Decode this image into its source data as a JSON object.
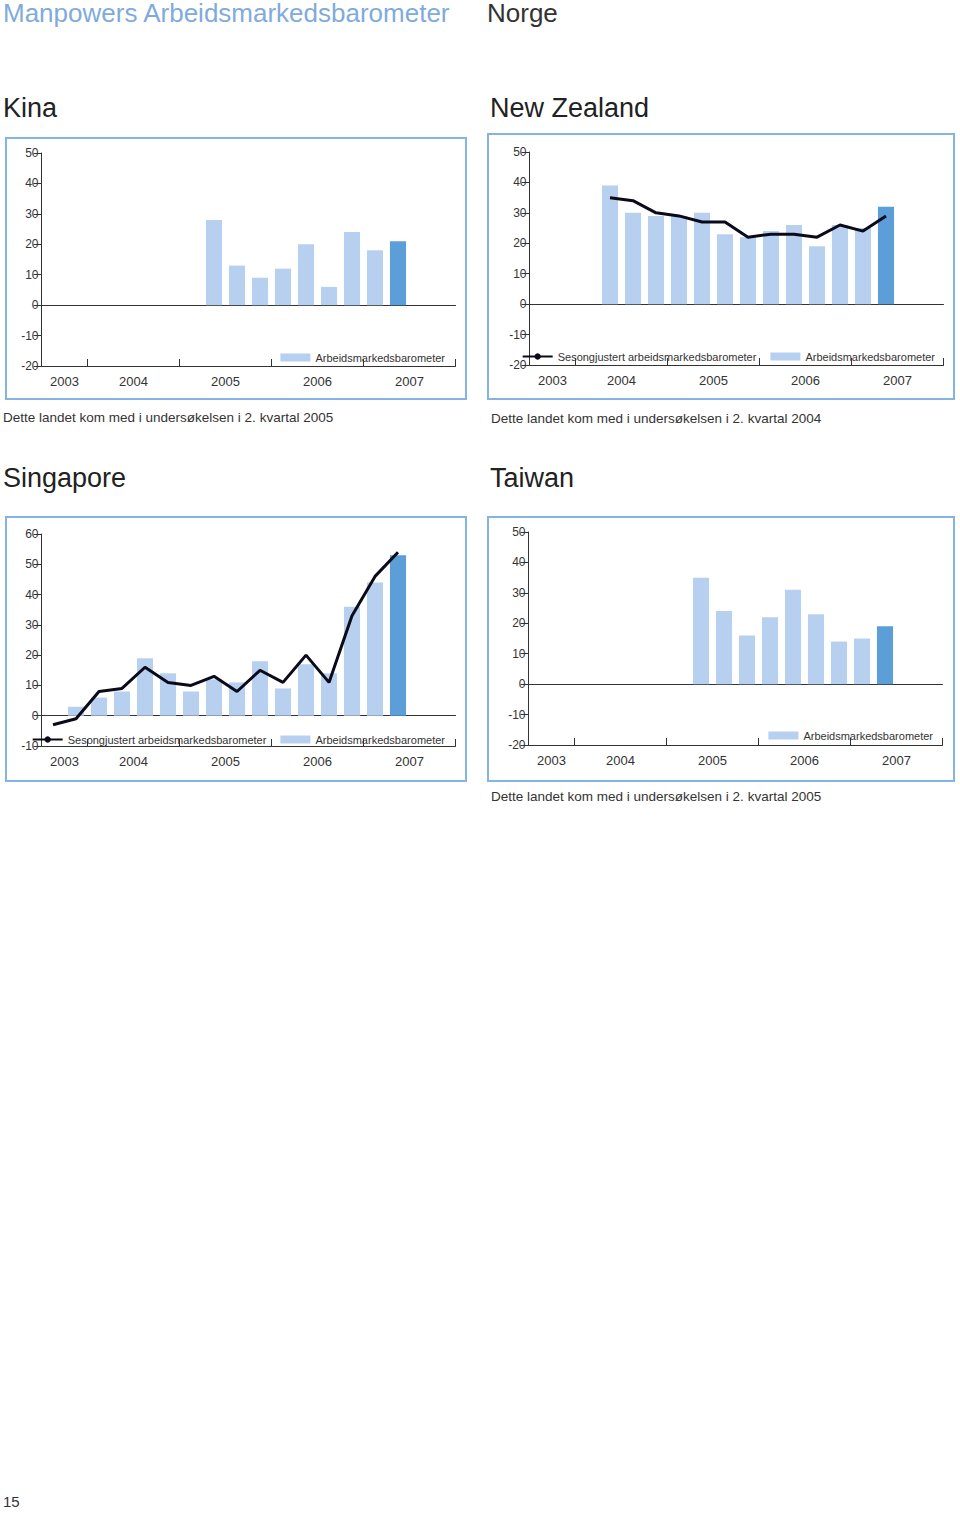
{
  "page": {
    "title": "Manpowers Arbeidsmarkedsbarometer",
    "subtitle": "Norge",
    "page_number": "15"
  },
  "chart_data": [
    {
      "type": "bar",
      "title": "Kina",
      "annotation": "Dette landet kom med i undersøkelsen i 2. kvartal 2005",
      "categories": [
        "2003",
        null,
        null,
        "2004",
        null,
        null,
        null,
        "2005",
        null,
        null,
        null,
        "2006",
        null,
        null,
        null,
        "2007",
        null,
        null
      ],
      "series": [
        {
          "name": "Arbeidsmarkedsbarometer",
          "type": "bar",
          "color": "#b8d0ef",
          "colors": [
            "#b8d0ef",
            "#b8d0ef",
            "#b8d0ef",
            "#b8d0ef",
            "#b8d0ef",
            "#b8d0ef",
            "#b8d0ef",
            "#b8d0ef",
            "#b8d0ef",
            "#b8d0ef",
            "#b8d0ef",
            "#b8d0ef",
            "#b8d0ef",
            "#b8d0ef",
            "#b8d0ef",
            "#5b9ed8",
            "#b8d0ef",
            "#b8d0ef"
          ],
          "values": [
            null,
            null,
            null,
            null,
            null,
            null,
            null,
            28,
            13,
            9,
            12,
            20,
            6,
            24,
            18,
            21,
            null,
            null
          ]
        }
      ],
      "ylim": [
        -20,
        50
      ],
      "yticks": [
        -20,
        -10,
        0,
        10,
        20,
        30,
        40,
        50
      ],
      "grid": false,
      "legend": "bottom right"
    },
    {
      "type": "bar",
      "title": "New Zealand",
      "annotation": "Dette landet kom med i undersøkelsen i 2. kvartal 2004",
      "categories": [
        "2003",
        null,
        null,
        "2004",
        null,
        null,
        null,
        "2005",
        null,
        null,
        null,
        "2006",
        null,
        null,
        null,
        "2007",
        null,
        null
      ],
      "series": [
        {
          "name": "Sesongjustert arbeidsmarkedsbarometer",
          "type": "line",
          "color": "#0a0a1a",
          "values": [
            null,
            null,
            null,
            35,
            34,
            30,
            29,
            27,
            27,
            22,
            23,
            23,
            22,
            26,
            24,
            29,
            null,
            null
          ]
        },
        {
          "name": "Arbeidsmarkedsbarometer",
          "type": "bar",
          "color": "#b8d0ef",
          "colors": [
            "#b8d0ef",
            "#b8d0ef",
            "#b8d0ef",
            "#b8d0ef",
            "#b8d0ef",
            "#b8d0ef",
            "#b8d0ef",
            "#b8d0ef",
            "#b8d0ef",
            "#b8d0ef",
            "#b8d0ef",
            "#b8d0ef",
            "#b8d0ef",
            "#b8d0ef",
            "#b8d0ef",
            "#5b9ed8",
            "#b8d0ef",
            "#b8d0ef"
          ],
          "values": [
            null,
            null,
            null,
            39,
            30,
            29,
            29,
            30,
            23,
            22,
            24,
            26,
            19,
            26,
            25,
            32,
            null,
            null
          ]
        }
      ],
      "ylim": [
        -20,
        50
      ],
      "yticks": [
        -20,
        -10,
        0,
        10,
        20,
        30,
        40,
        50
      ],
      "grid": false,
      "legend": "bottom right"
    },
    {
      "type": "bar",
      "title": "Singapore",
      "categories": [
        "2003",
        null,
        null,
        "2004",
        null,
        null,
        null,
        "2005",
        null,
        null,
        null,
        "2006",
        null,
        null,
        null,
        "2007",
        null,
        null
      ],
      "series": [
        {
          "name": "Sesongjustert arbeidsmarkedsbarometer",
          "type": "line",
          "color": "#0a0a1a",
          "values": [
            -3,
            -1,
            8,
            9,
            16,
            11,
            10,
            13,
            8,
            15,
            11,
            20,
            11,
            33,
            46,
            54,
            null,
            null
          ]
        },
        {
          "name": "Arbeidsmarkedsbarometer",
          "type": "bar",
          "color": "#b8d0ef",
          "colors": [
            "#b8d0ef",
            "#b8d0ef",
            "#b8d0ef",
            "#b8d0ef",
            "#b8d0ef",
            "#b8d0ef",
            "#b8d0ef",
            "#b8d0ef",
            "#b8d0ef",
            "#b8d0ef",
            "#b8d0ef",
            "#b8d0ef",
            "#b8d0ef",
            "#b8d0ef",
            "#b8d0ef",
            "#5b9ed8",
            "#b8d0ef",
            "#b8d0ef"
          ],
          "values": [
            null,
            3,
            6,
            8,
            19,
            14,
            8,
            12,
            11,
            18,
            9,
            17,
            14,
            36,
            44,
            53,
            null,
            null
          ]
        }
      ],
      "ylim": [
        -10,
        60
      ],
      "yticks": [
        -10,
        0,
        10,
        20,
        30,
        40,
        50,
        60
      ],
      "grid": false,
      "legend": "bottom right"
    },
    {
      "type": "bar",
      "title": "Taiwan",
      "annotation": "Dette landet kom med i undersøkelsen i 2. kvartal 2005",
      "categories": [
        "2003",
        null,
        null,
        "2004",
        null,
        null,
        null,
        "2005",
        null,
        null,
        null,
        "2006",
        null,
        null,
        null,
        "2007",
        null,
        null
      ],
      "series": [
        {
          "name": "Arbeidsmarkedsbarometer",
          "type": "bar",
          "color": "#b8d0ef",
          "colors": [
            "#b8d0ef",
            "#b8d0ef",
            "#b8d0ef",
            "#b8d0ef",
            "#b8d0ef",
            "#b8d0ef",
            "#b8d0ef",
            "#b8d0ef",
            "#b8d0ef",
            "#b8d0ef",
            "#b8d0ef",
            "#b8d0ef",
            "#b8d0ef",
            "#b8d0ef",
            "#b8d0ef",
            "#5b9ed8",
            "#b8d0ef",
            "#b8d0ef"
          ],
          "values": [
            null,
            null,
            null,
            null,
            null,
            null,
            null,
            35,
            24,
            16,
            22,
            31,
            23,
            14,
            15,
            19,
            null,
            null
          ]
        }
      ],
      "ylim": [
        -20,
        50
      ],
      "yticks": [
        -20,
        -10,
        0,
        10,
        20,
        30,
        40,
        50
      ],
      "grid": false,
      "legend": "bottom right"
    }
  ]
}
